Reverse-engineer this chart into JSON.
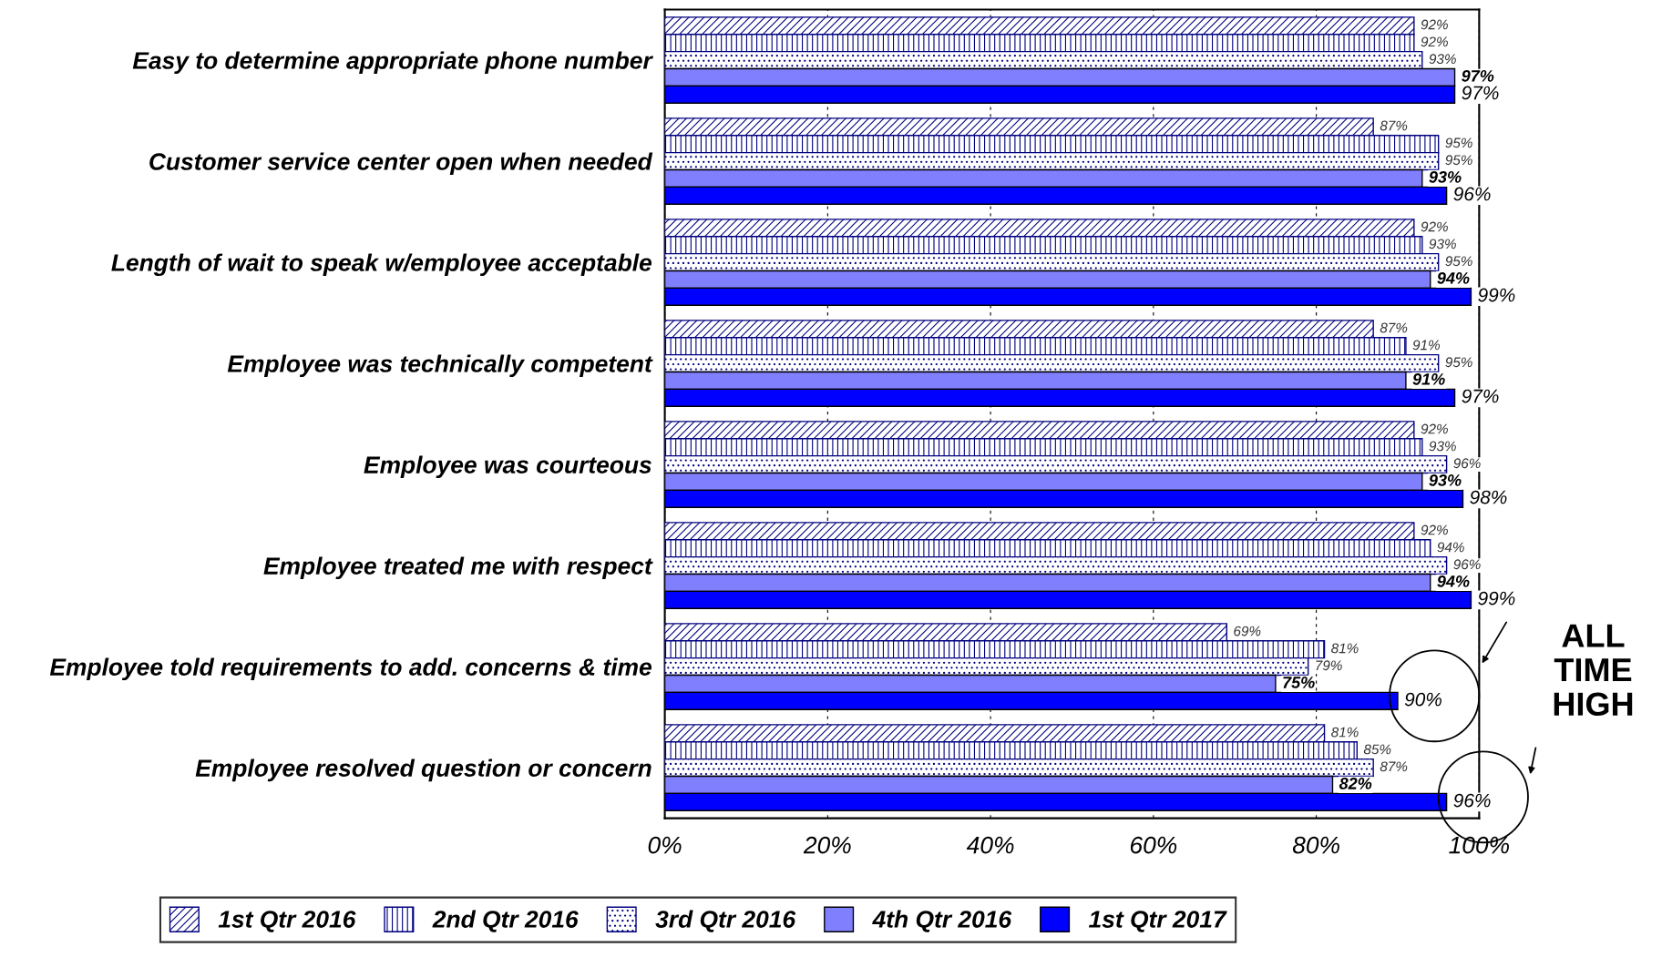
{
  "chart_data": {
    "type": "bar",
    "orientation": "horizontal",
    "categories": [
      "Easy to determine appropriate phone number",
      "Customer service center open when needed",
      "Length of wait to speak w/employee acceptable",
      "Employee was technically competent",
      "Employee was courteous",
      "Employee treated me with respect",
      "Employee told requirements to add. concerns & time",
      "Employee resolved question or concern"
    ],
    "series": [
      {
        "name": "1st Qtr 2016",
        "color": "#000080",
        "values": [
          92,
          87,
          92,
          87,
          92,
          92,
          69,
          81
        ],
        "value_labels": [
          "92%",
          "87%",
          "92%",
          "87%",
          "92%",
          "92%",
          "69%",
          "81%"
        ]
      },
      {
        "name": "2nd Qtr 2016",
        "color": "#000080",
        "values": [
          92,
          95,
          93,
          91,
          93,
          94,
          81,
          85
        ],
        "value_labels": [
          "92%",
          "95%",
          "93%",
          "91%",
          "93%",
          "94%",
          "81%",
          "85%"
        ]
      },
      {
        "name": "3rd Qtr 2016",
        "color": "#000080",
        "values": [
          93,
          95,
          95,
          95,
          96,
          96,
          79,
          87
        ],
        "value_labels": [
          "93%",
          "95%",
          "95%",
          "95%",
          "96%",
          "96%",
          "79%",
          "87%"
        ]
      },
      {
        "name": "4th Qtr 2016",
        "color": "#8080ff",
        "values": [
          97,
          93,
          94,
          91,
          93,
          94,
          75,
          82
        ],
        "value_labels": [
          "97%",
          "93%",
          "94%",
          "91%",
          "93%",
          "94%",
          "75%",
          "82%"
        ]
      },
      {
        "name": "1st Qtr 2017",
        "color": "#0000ff",
        "values": [
          97,
          96,
          99,
          97,
          98,
          99,
          90,
          96
        ],
        "value_labels": [
          "97%",
          "96%",
          "99%",
          "97%",
          "98%",
          "99%",
          "90%",
          "96%"
        ]
      }
    ],
    "xlim": [
      0,
      100
    ],
    "xticks": [
      {
        "value": 0,
        "label": "0%"
      },
      {
        "value": 20,
        "label": "20%"
      },
      {
        "value": 40,
        "label": "40%"
      },
      {
        "value": 60,
        "label": "60%"
      },
      {
        "value": 80,
        "label": "80%"
      },
      {
        "value": 100,
        "label": "100%"
      }
    ],
    "grid": "x",
    "legend": "bottom",
    "annotations": [
      "ALL TIME HIGH"
    ]
  }
}
